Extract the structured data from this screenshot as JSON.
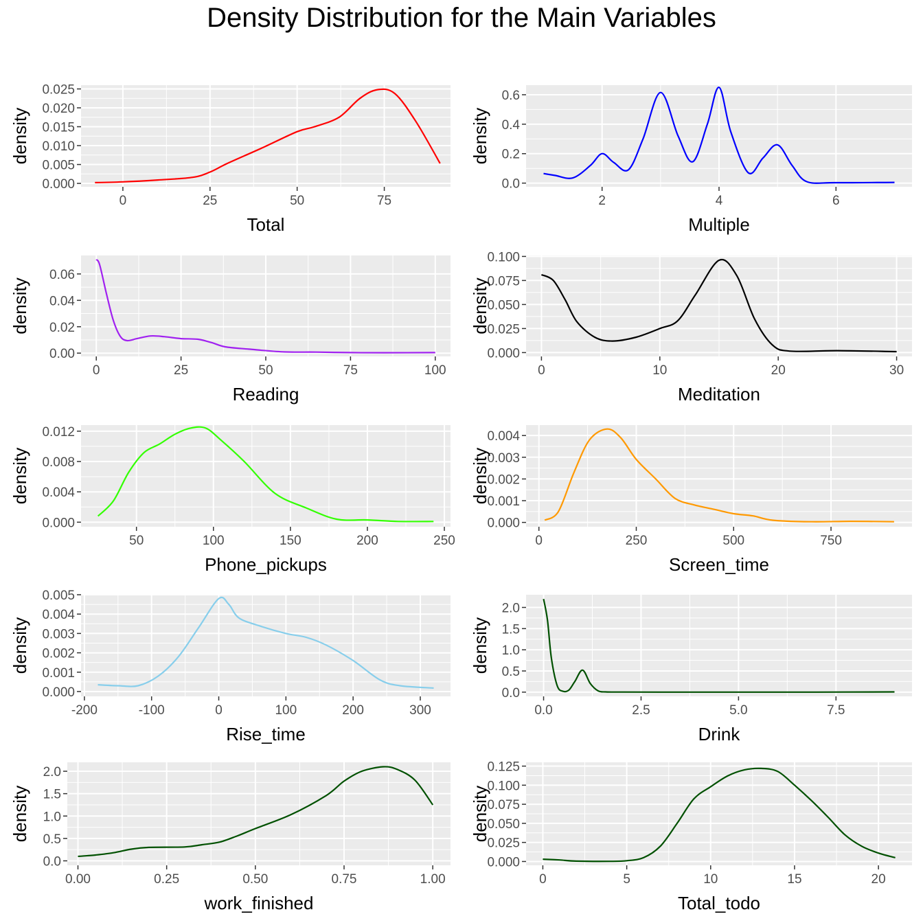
{
  "title": "Density Distribution for the Main Variables",
  "chart_data": [
    {
      "type": "line",
      "xlabel": "Total",
      "ylabel": "density",
      "color": "#ff0000",
      "xlim": [
        -12,
        94
      ],
      "ylim": [
        -0.0009,
        0.026
      ],
      "xticks": [
        0,
        25,
        50,
        75
      ],
      "xtick_labels": [
        "0",
        "25",
        "50",
        "75"
      ],
      "yticks": [
        0,
        0.005,
        0.01,
        0.015,
        0.02,
        0.025
      ],
      "ytick_labels": [
        "0.000",
        "0.005",
        "0.010",
        "0.015",
        "0.020",
        "0.025"
      ],
      "x": [
        -8,
        0,
        10,
        20,
        25,
        30,
        40,
        50,
        55,
        62,
        68,
        73,
        78,
        84,
        91
      ],
      "y": [
        0.0002,
        0.0004,
        0.0009,
        0.0016,
        0.003,
        0.0053,
        0.0094,
        0.0137,
        0.015,
        0.0175,
        0.0225,
        0.0248,
        0.0238,
        0.0165,
        0.0053
      ]
    },
    {
      "type": "line",
      "xlabel": "Multiple",
      "ylabel": "density",
      "color": "#0000ff",
      "xlim": [
        0.7,
        7.3
      ],
      "ylim": [
        -0.025,
        0.665
      ],
      "xticks": [
        2,
        4,
        6
      ],
      "xtick_labels": [
        "2",
        "4",
        "6"
      ],
      "yticks": [
        0,
        0.2,
        0.4,
        0.6
      ],
      "ytick_labels": [
        "0.0",
        "0.2",
        "0.4",
        "0.6"
      ],
      "x": [
        1,
        1.2,
        1.5,
        1.8,
        2,
        2.2,
        2.45,
        2.7,
        3,
        3.3,
        3.55,
        3.8,
        4,
        4.2,
        4.5,
        4.75,
        5,
        5.25,
        5.5,
        6,
        7
      ],
      "y": [
        0.065,
        0.052,
        0.035,
        0.12,
        0.2,
        0.14,
        0.09,
        0.3,
        0.615,
        0.32,
        0.145,
        0.4,
        0.65,
        0.35,
        0.07,
        0.17,
        0.26,
        0.12,
        0.01,
        0.003,
        0.005
      ]
    },
    {
      "type": "line",
      "xlabel": "Reading",
      "ylabel": "density",
      "color": "#a020f0",
      "xlim": [
        -4.5,
        104.5
      ],
      "ylim": [
        -0.0025,
        0.074
      ],
      "xticks": [
        0,
        25,
        50,
        75,
        100
      ],
      "xtick_labels": [
        "0",
        "25",
        "50",
        "75",
        "100"
      ],
      "yticks": [
        0,
        0.02,
        0.04,
        0.06
      ],
      "ytick_labels": [
        "0.00",
        "0.02",
        "0.04",
        "0.06"
      ],
      "x": [
        0,
        1,
        3,
        5,
        7,
        9,
        12,
        16,
        20,
        25,
        30,
        34,
        38,
        45,
        55,
        65,
        75,
        85,
        100
      ],
      "y": [
        0.071,
        0.067,
        0.045,
        0.025,
        0.013,
        0.0095,
        0.011,
        0.013,
        0.0125,
        0.011,
        0.0105,
        0.008,
        0.0048,
        0.003,
        0.001,
        0.0008,
        0.0004,
        0.0003,
        0.0004
      ]
    },
    {
      "type": "line",
      "xlabel": "Meditation",
      "ylabel": "density",
      "color": "#000000",
      "xlim": [
        -1.3,
        31.3
      ],
      "ylim": [
        -0.004,
        0.101
      ],
      "xticks": [
        0,
        10,
        20,
        30
      ],
      "xtick_labels": [
        "0",
        "10",
        "20",
        "30"
      ],
      "yticks": [
        0,
        0.025,
        0.05,
        0.075,
        0.1
      ],
      "ytick_labels": [
        "0.000",
        "0.025",
        "0.050",
        "0.075",
        "0.100"
      ],
      "x": [
        0,
        1,
        2,
        3,
        4.5,
        6,
        8,
        10,
        11.5,
        13,
        15,
        16.5,
        18,
        19.5,
        21,
        25,
        30
      ],
      "y": [
        0.081,
        0.075,
        0.055,
        0.032,
        0.016,
        0.012,
        0.016,
        0.025,
        0.033,
        0.06,
        0.096,
        0.08,
        0.035,
        0.008,
        0.0015,
        0.002,
        0.001
      ]
    },
    {
      "type": "line",
      "xlabel": "Phone_pickups",
      "ylabel": "density",
      "color": "#32ff00",
      "xlim": [
        14,
        254
      ],
      "ylim": [
        -0.0006,
        0.0128
      ],
      "xticks": [
        50,
        100,
        150,
        200,
        250
      ],
      "xtick_labels": [
        "50",
        "100",
        "150",
        "200",
        "250"
      ],
      "yticks": [
        0,
        0.004,
        0.008,
        0.012
      ],
      "ytick_labels": [
        "0.000",
        "0.004",
        "0.008",
        "0.012"
      ],
      "x": [
        25,
        35,
        45,
        55,
        65,
        75,
        85,
        95,
        105,
        120,
        140,
        160,
        180,
        200,
        220,
        243
      ],
      "y": [
        0.0008,
        0.0028,
        0.0066,
        0.0092,
        0.0103,
        0.0116,
        0.0124,
        0.0124,
        0.0108,
        0.008,
        0.0038,
        0.0019,
        0.0004,
        0.0003,
        0.0001,
        0.0001
      ]
    },
    {
      "type": "line",
      "xlabel": "Screen_time",
      "ylabel": "density",
      "color": "#ff9900",
      "xlim": [
        -33,
        958
      ],
      "ylim": [
        -0.0002,
        0.00448
      ],
      "xticks": [
        0,
        250,
        500,
        750
      ],
      "xtick_labels": [
        "0",
        "250",
        "500",
        "750"
      ],
      "yticks": [
        0,
        0.001,
        0.002,
        0.003,
        0.004
      ],
      "ytick_labels": [
        "0.000",
        "0.001",
        "0.002",
        "0.003",
        "0.004"
      ],
      "x": [
        15,
        50,
        90,
        130,
        175,
        210,
        250,
        300,
        350,
        400,
        450,
        500,
        550,
        600,
        700,
        800,
        912
      ],
      "y": [
        0.0001,
        0.0005,
        0.0023,
        0.0038,
        0.0043,
        0.0039,
        0.0029,
        0.002,
        0.0011,
        0.0008,
        0.0006,
        0.0004,
        0.0003,
        0.0001,
        3e-05,
        5e-05,
        3e-05
      ]
    },
    {
      "type": "line",
      "xlabel": "Rise_time",
      "ylabel": "density",
      "color": "#87ceeb",
      "xlim": [
        -205,
        345
      ],
      "ylim": [
        -0.00025,
        0.005
      ],
      "xticks": [
        -200,
        -100,
        0,
        100,
        200,
        300
      ],
      "xtick_labels": [
        "-200",
        "-100",
        "0",
        "100",
        "200",
        "300"
      ],
      "yticks": [
        0,
        0.001,
        0.002,
        0.003,
        0.004,
        0.005
      ],
      "ytick_labels": [
        "0.000",
        "0.001",
        "0.002",
        "0.003",
        "0.004",
        "0.005"
      ],
      "x": [
        -180,
        -150,
        -120,
        -90,
        -60,
        -30,
        0,
        15,
        30,
        60,
        100,
        130,
        160,
        200,
        240,
        270,
        320
      ],
      "y": [
        0.00035,
        0.0003,
        0.0003,
        0.0008,
        0.0018,
        0.0033,
        0.0048,
        0.0045,
        0.0038,
        0.0034,
        0.003,
        0.0028,
        0.0024,
        0.0016,
        0.0006,
        0.0003,
        0.00018
      ]
    },
    {
      "type": "line",
      "xlabel": "Drink",
      "ylabel": "density",
      "color": "#005000",
      "xlim": [
        -0.45,
        9.45
      ],
      "ylim": [
        -0.1,
        2.3
      ],
      "xticks": [
        0,
        2.5,
        5,
        7.5
      ],
      "xtick_labels": [
        "0.0",
        "2.5",
        "5.0",
        "7.5"
      ],
      "yticks": [
        0,
        0.5,
        1,
        1.5,
        2
      ],
      "ytick_labels": [
        "0.0",
        "0.5",
        "1.0",
        "1.5",
        "2.0"
      ],
      "x": [
        0,
        0.1,
        0.2,
        0.35,
        0.5,
        0.65,
        0.8,
        1,
        1.2,
        1.4,
        1.6,
        2,
        3,
        5,
        7,
        9
      ],
      "y": [
        2.2,
        1.7,
        0.8,
        0.15,
        0.02,
        0.05,
        0.25,
        0.52,
        0.2,
        0.03,
        0.005,
        0.002,
        0.001,
        0.001,
        0.001,
        0.005
      ]
    },
    {
      "type": "line",
      "xlabel": "work_finished",
      "ylabel": "density",
      "color": "#005000",
      "xlim": [
        -0.03,
        1.05
      ],
      "ylim": [
        -0.1,
        2.2
      ],
      "xticks": [
        0,
        0.25,
        0.5,
        0.75,
        1
      ],
      "xtick_labels": [
        "0.00",
        "0.25",
        "0.50",
        "0.75",
        "1.00"
      ],
      "yticks": [
        0,
        0.5,
        1,
        1.5,
        2
      ],
      "ytick_labels": [
        "0.0",
        "0.5",
        "1.0",
        "1.5",
        "2.0"
      ],
      "x": [
        0,
        0.05,
        0.1,
        0.15,
        0.2,
        0.3,
        0.35,
        0.4,
        0.45,
        0.5,
        0.6,
        0.7,
        0.75,
        0.8,
        0.86,
        0.9,
        0.95,
        1
      ],
      "y": [
        0.1,
        0.13,
        0.18,
        0.26,
        0.3,
        0.31,
        0.36,
        0.42,
        0.56,
        0.72,
        1.03,
        1.46,
        1.78,
        2.0,
        2.1,
        2.04,
        1.8,
        1.25
      ]
    },
    {
      "type": "line",
      "xlabel": "Total_todo",
      "ylabel": "density",
      "color": "#005000",
      "xlim": [
        -1,
        22
      ],
      "ylim": [
        -0.005,
        0.13
      ],
      "xticks": [
        0,
        5,
        10,
        15,
        20
      ],
      "xtick_labels": [
        "0",
        "5",
        "10",
        "15",
        "20"
      ],
      "yticks": [
        0,
        0.025,
        0.05,
        0.075,
        0.1,
        0.125
      ],
      "ytick_labels": [
        "0.000",
        "0.025",
        "0.050",
        "0.075",
        "0.100",
        "0.125"
      ],
      "x": [
        0,
        1,
        2,
        4,
        5,
        6,
        7,
        8,
        9,
        10,
        11,
        12,
        13,
        14,
        15,
        16,
        17,
        18,
        19,
        20,
        21
      ],
      "y": [
        0.003,
        0.002,
        0.0005,
        0.0002,
        0.001,
        0.005,
        0.02,
        0.05,
        0.082,
        0.098,
        0.112,
        0.12,
        0.122,
        0.118,
        0.1,
        0.08,
        0.058,
        0.035,
        0.02,
        0.011,
        0.005
      ]
    }
  ]
}
